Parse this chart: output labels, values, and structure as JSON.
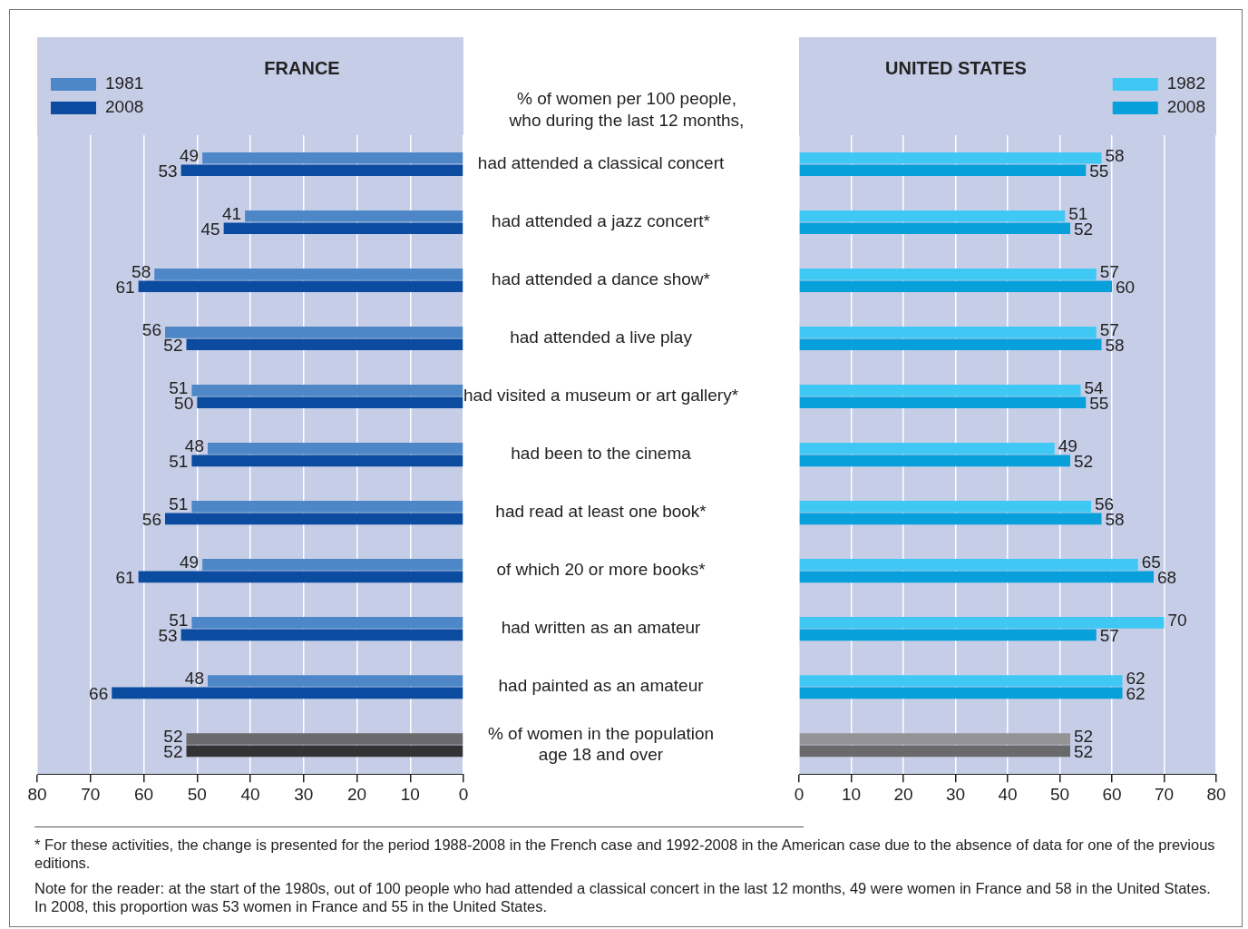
{
  "chart_data": [
    {
      "type": "bar",
      "orientation": "horizontal",
      "title": "FRANCE",
      "categories": [
        "had attended a classical concert",
        "had attended a jazz concert*",
        "had attended a dance show*",
        "had attended a live play",
        "had visited a museum or art gallery*",
        "had been to the cinema",
        "had read at least one book*",
        "of which 20 or more books*",
        "had written as an amateur",
        "had painted as an amateur",
        "% of women in the population\nage 18 and over"
      ],
      "series": [
        {
          "name": "1981",
          "color": "#4d87c7",
          "colors": [
            "#4d87c7",
            "#4d87c7",
            "#4d87c7",
            "#4d87c7",
            "#4d87c7",
            "#4d87c7",
            "#4d87c7",
            "#4d87c7",
            "#4d87c7",
            "#4d87c7",
            "#6a6a6c"
          ],
          "values": [
            49,
            41,
            58,
            56,
            51,
            48,
            51,
            49,
            51,
            48,
            52
          ]
        },
        {
          "name": "2008",
          "color": "#0b4ba0",
          "colors": [
            "#0b4ba0",
            "#0b4ba0",
            "#0b4ba0",
            "#0b4ba0",
            "#0b4ba0",
            "#0b4ba0",
            "#0b4ba0",
            "#0b4ba0",
            "#0b4ba0",
            "#0b4ba0",
            "#333335"
          ],
          "values": [
            53,
            45,
            61,
            52,
            50,
            51,
            56,
            61,
            53,
            66,
            52
          ]
        }
      ],
      "xlim": [
        80,
        0
      ],
      "xticks": [
        80,
        70,
        60,
        50,
        40,
        30,
        20,
        10,
        0
      ],
      "grid": "x",
      "legend": "top left",
      "data_labels": true,
      "annotations": [
        "% of women per 100 people,\nwho during the last 12 months,"
      ]
    },
    {
      "type": "bar",
      "orientation": "horizontal",
      "title": "UNITED STATES",
      "categories": [
        null,
        null,
        null,
        null,
        null,
        null,
        null,
        null,
        null,
        null,
        null
      ],
      "series": [
        {
          "name": "1982",
          "color": "#40c8f4",
          "colors": [
            "#40c8f4",
            "#40c8f4",
            "#40c8f4",
            "#40c8f4",
            "#40c8f4",
            "#40c8f4",
            "#40c8f4",
            "#40c8f4",
            "#40c8f4",
            "#40c8f4",
            "#949496"
          ],
          "values": [
            58,
            51,
            57,
            57,
            54,
            49,
            56,
            65,
            70,
            62,
            52
          ]
        },
        {
          "name": "2008",
          "color": "#07a0db",
          "colors": [
            "#07a0db",
            "#07a0db",
            "#07a0db",
            "#07a0db",
            "#07a0db",
            "#07a0db",
            "#07a0db",
            "#07a0db",
            "#07a0db",
            "#07a0db",
            "#6a6a6c"
          ],
          "values": [
            55,
            52,
            60,
            58,
            55,
            52,
            58,
            68,
            57,
            62,
            52
          ]
        }
      ],
      "xlim": [
        0,
        80
      ],
      "xticks": [
        0,
        10,
        20,
        30,
        40,
        50,
        60,
        70,
        80
      ],
      "grid": "x",
      "legend": "top right",
      "data_labels": true,
      "tick_labels": "x",
      "annotations": [
        "* For these activities, the change is presented for the period 1988-2008 in the French case and 1992-2008 in the American case due to the absence of data for one of the previous editions.",
        "Note for the reader: at the start of the 1980s, out of 100 people who had attended a classical concert in the last 12 months, 49 were women in France and 58 in the United States. In 2008, this proportion was 53 women in France and 55 in the United States."
      ]
    }
  ]
}
